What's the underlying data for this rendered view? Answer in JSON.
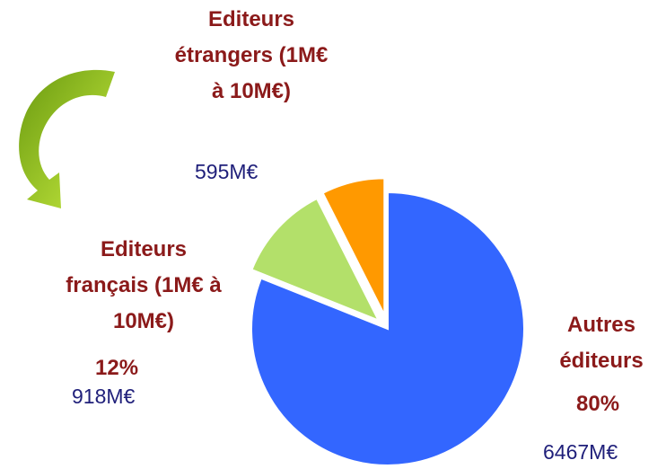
{
  "chart_data": {
    "type": "pie",
    "categories": [
      "Autres\néditeurs",
      "Editeurs\nfrançais (1M€ à\n10M€)",
      "Editeurs\nétrangers (1M€\nà 10M€)"
    ],
    "values": [
      6467,
      918,
      595
    ],
    "value_labels": [
      "6467M€",
      "918M€",
      "595M€"
    ],
    "percent_labels": [
      "80%",
      "12%",
      null
    ],
    "colors": [
      "#3366ff",
      "#b3e06a",
      "#ff9900"
    ]
  }
}
